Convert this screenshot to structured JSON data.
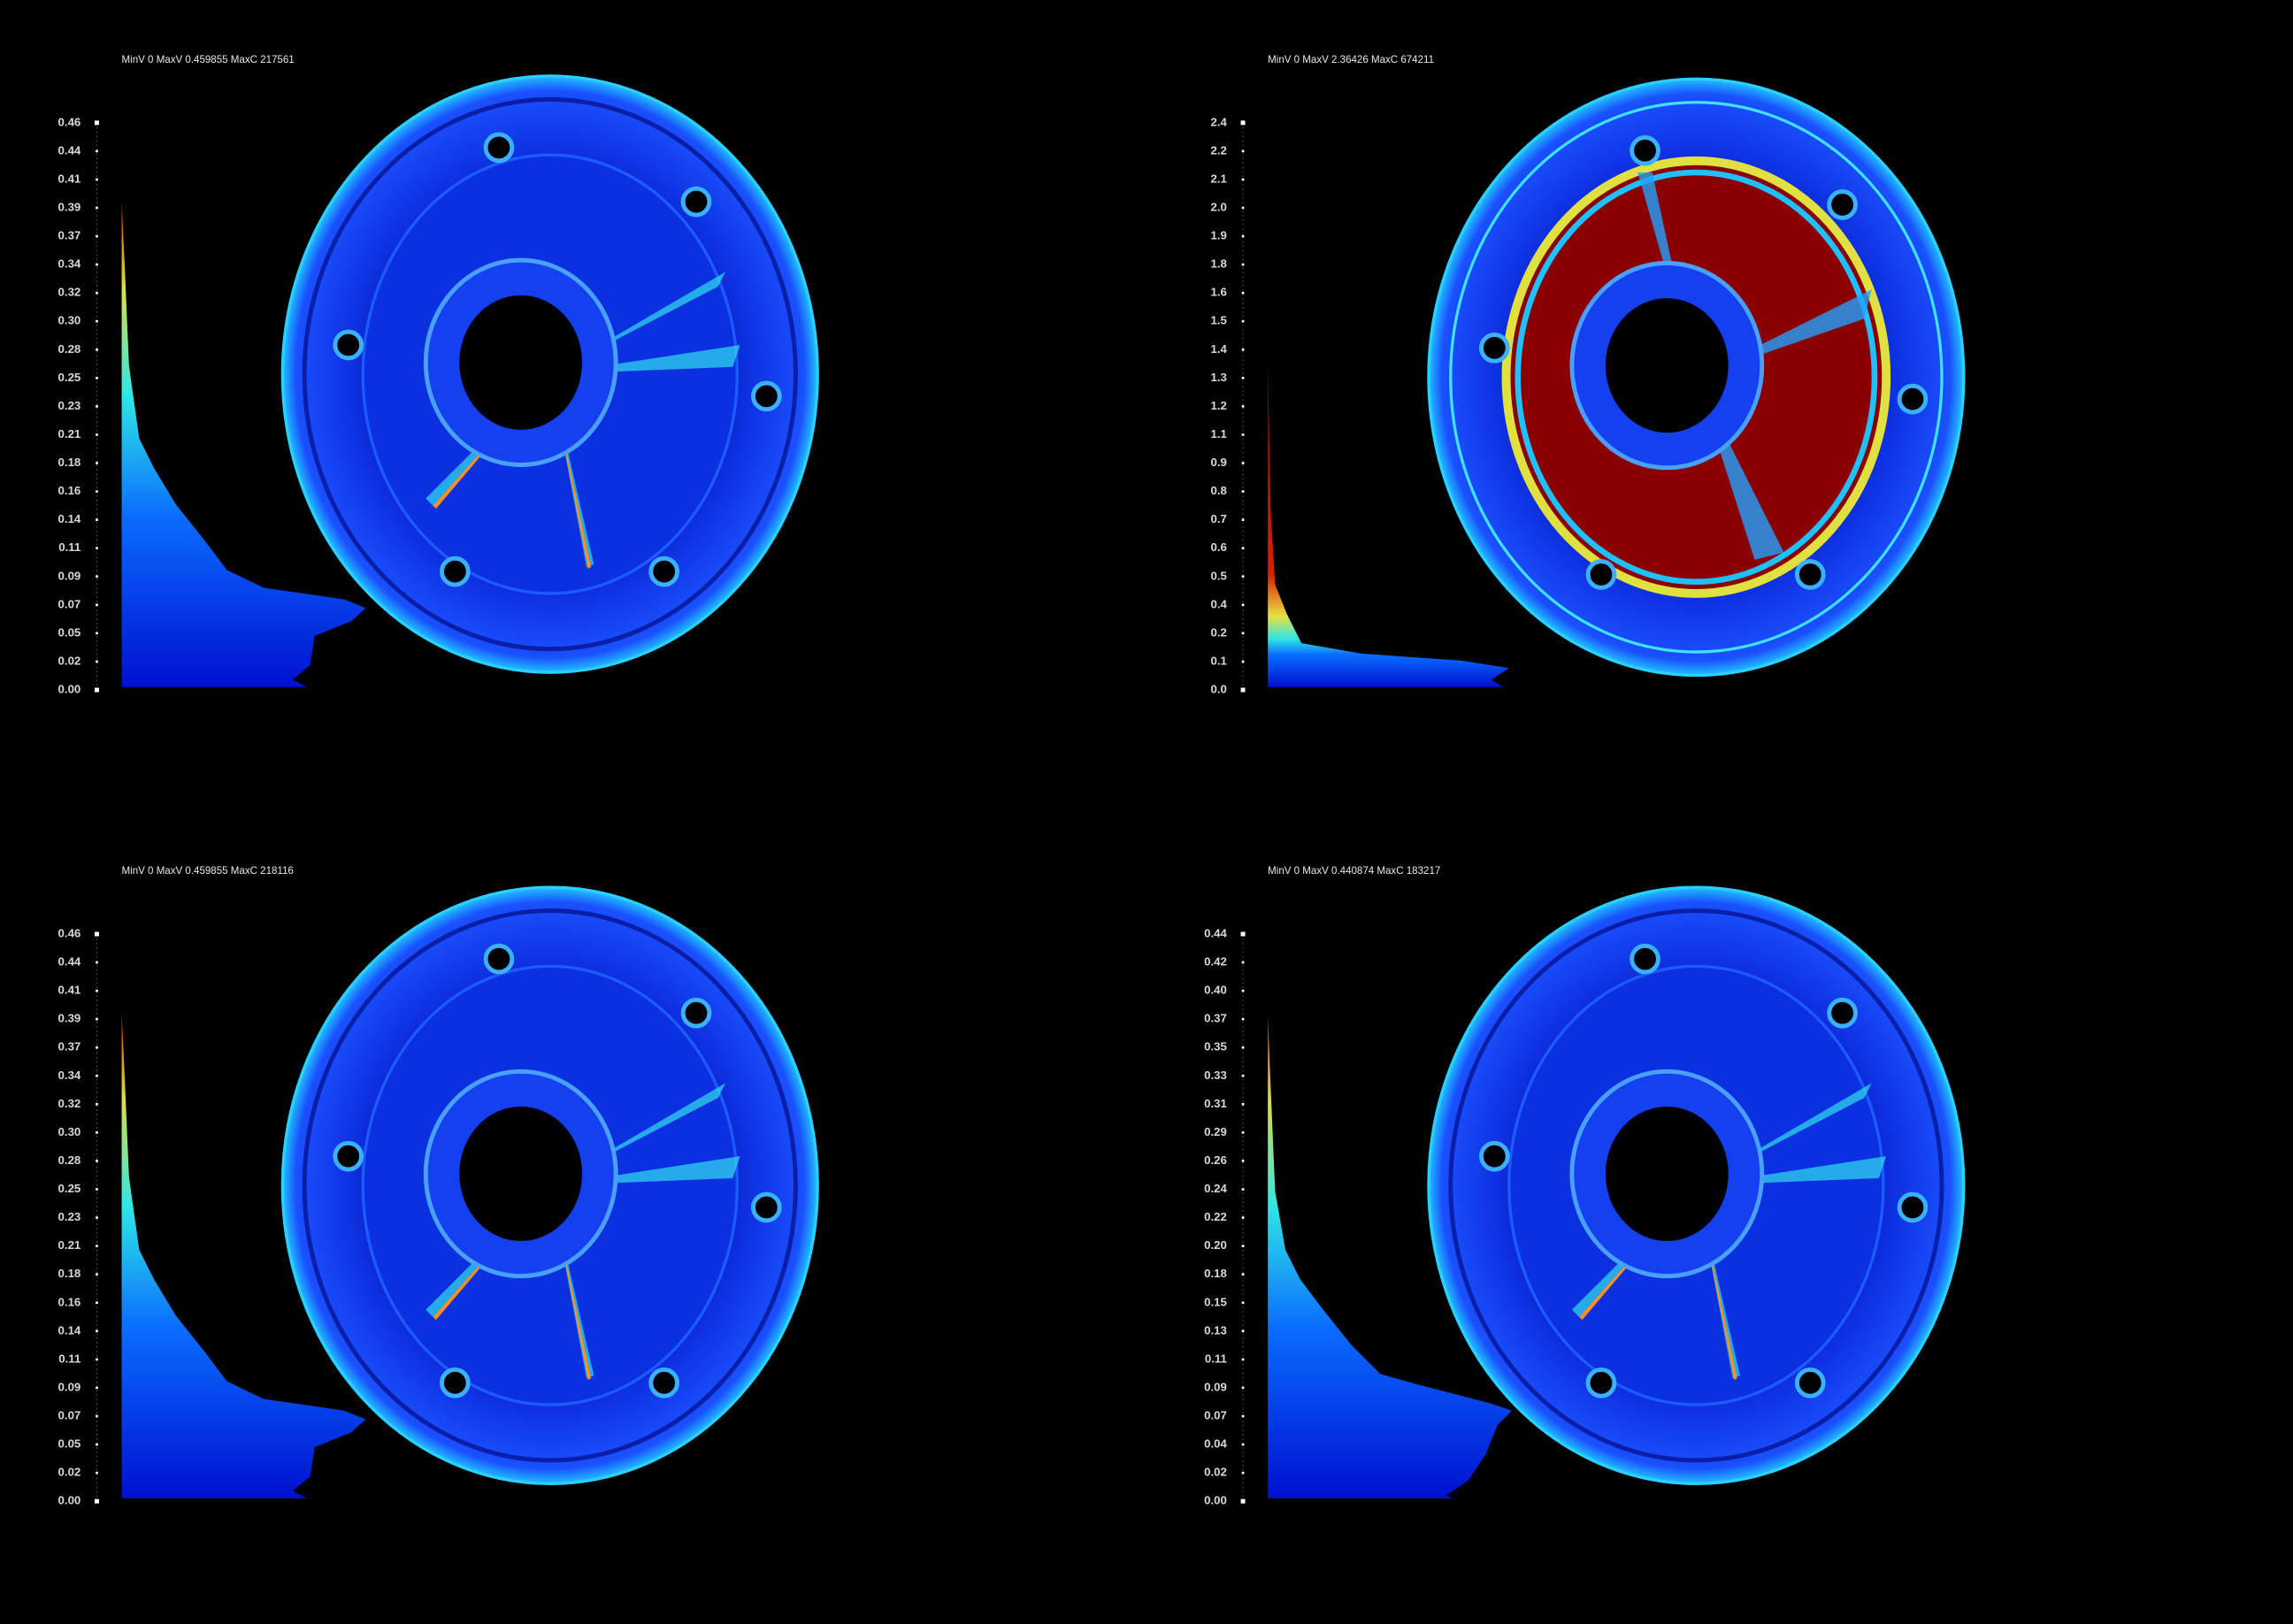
{
  "panels": [
    {
      "header": "MinV 0 MaxV 0.459855 MaxC 217561",
      "ticks": [
        "0.46",
        "0.44",
        "0.41",
        "0.39",
        "0.37",
        "0.34",
        "0.32",
        "0.30",
        "0.28",
        "0.25",
        "0.23",
        "0.21",
        "0.18",
        "0.16",
        "0.14",
        "0.11",
        "0.09",
        "0.07",
        "0.05",
        "0.02",
        "0.00"
      ]
    },
    {
      "header": "MinV 0 MaxV 2.36426 MaxC 674211",
      "ticks": [
        "2.4",
        "2.2",
        "2.1",
        "2.0",
        "1.9",
        "1.8",
        "1.6",
        "1.5",
        "1.4",
        "1.3",
        "1.2",
        "1.1",
        "0.9",
        "0.8",
        "0.7",
        "0.6",
        "0.5",
        "0.4",
        "0.2",
        "0.1",
        "0.0"
      ]
    },
    {
      "header": "MinV 0 MaxV 0.459855 MaxC 218116",
      "ticks": [
        "0.46",
        "0.44",
        "0.41",
        "0.39",
        "0.37",
        "0.34",
        "0.32",
        "0.30",
        "0.28",
        "0.25",
        "0.23",
        "0.21",
        "0.18",
        "0.16",
        "0.14",
        "0.11",
        "0.09",
        "0.07",
        "0.05",
        "0.02",
        "0.00"
      ]
    },
    {
      "header": "MinV 0 MaxV 0.440874 MaxC 183217",
      "ticks": [
        "0.44",
        "0.42",
        "0.40",
        "0.37",
        "0.35",
        "0.33",
        "0.31",
        "0.29",
        "0.26",
        "0.24",
        "0.22",
        "0.20",
        "0.18",
        "0.15",
        "0.13",
        "0.11",
        "0.09",
        "0.07",
        "0.04",
        "0.02",
        "0.00"
      ]
    }
  ]
}
